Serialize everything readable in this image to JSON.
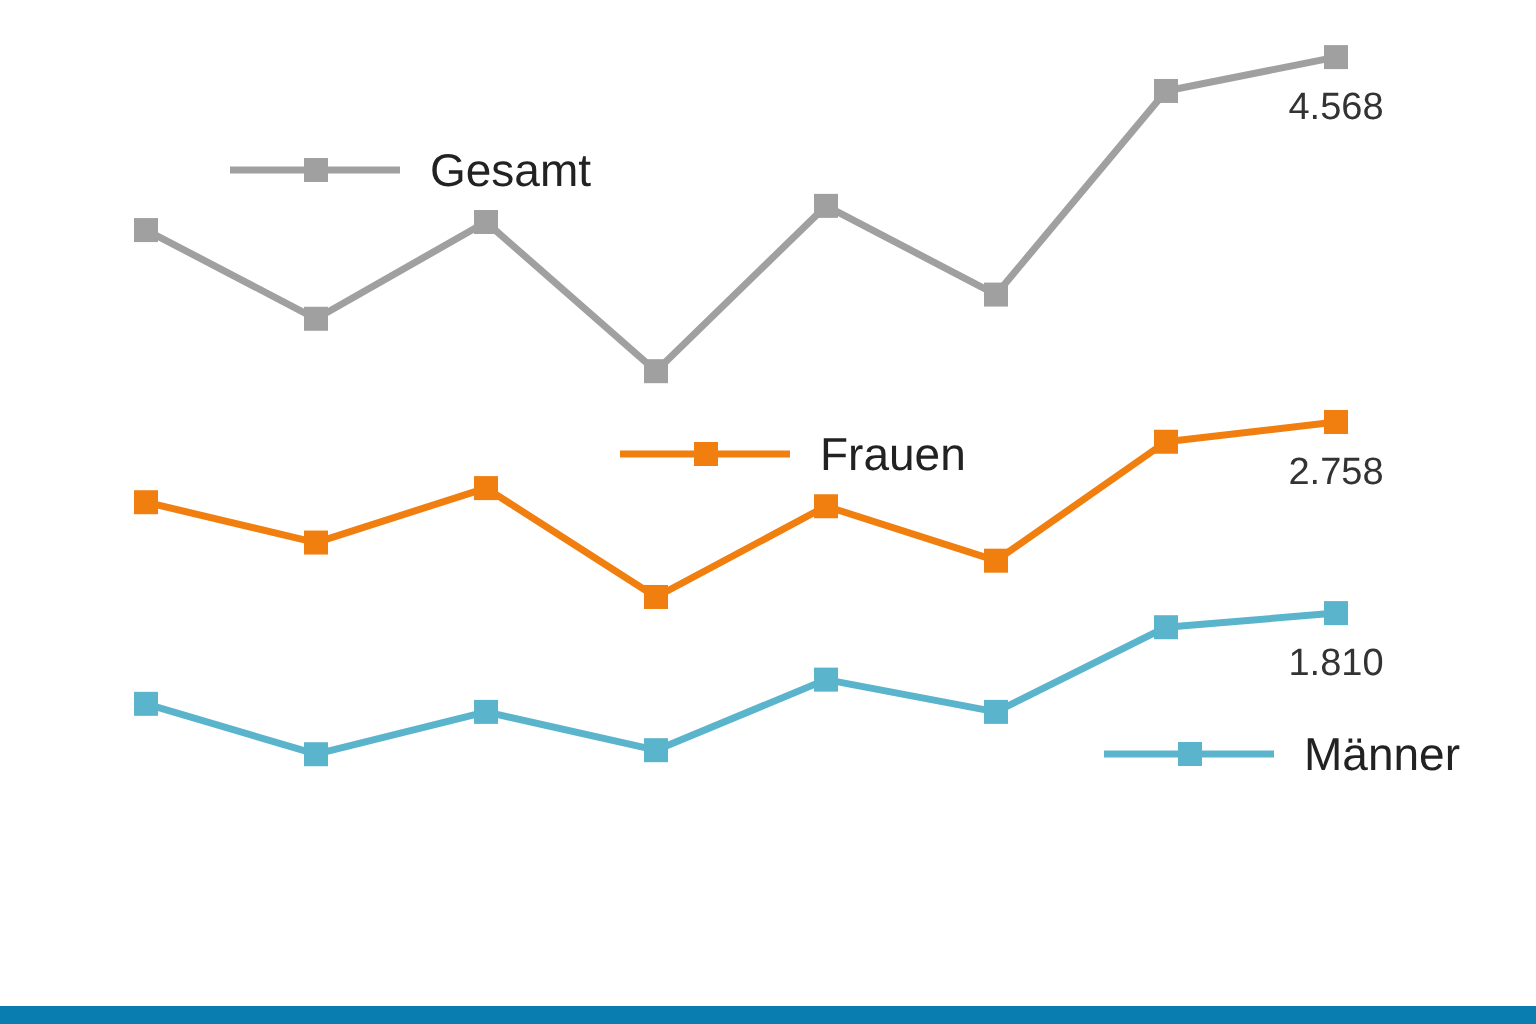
{
  "chart_data": {
    "type": "line",
    "categories": [
      null,
      null,
      null,
      null,
      null,
      null,
      null,
      null
    ],
    "legend": "bottom right",
    "grid": false,
    "marker": "square",
    "line_style": "solid",
    "series": [
      {
        "name": "Gesamt",
        "color": "#a0a0a0",
        "values": [
          3.71,
          3.27,
          3.75,
          3.01,
          3.83,
          3.39,
          4.4,
          4.568
        ],
        "value_labels": [
          null,
          null,
          null,
          null,
          null,
          null,
          null,
          "4.568"
        ]
      },
      {
        "name": "Frauen",
        "color": "#f07f0f",
        "values": [
          2.36,
          2.16,
          2.43,
          1.89,
          2.34,
          2.07,
          2.66,
          2.758
        ],
        "value_labels": [
          null,
          null,
          null,
          null,
          null,
          null,
          null,
          "2.758"
        ]
      },
      {
        "name": "Männer",
        "color": "#5ab4cc",
        "values": [
          1.36,
          1.11,
          1.32,
          1.13,
          1.48,
          1.32,
          1.74,
          1.81
        ],
        "value_labels": [
          null,
          null,
          null,
          null,
          null,
          null,
          null,
          "1.810"
        ]
      }
    ]
  }
}
